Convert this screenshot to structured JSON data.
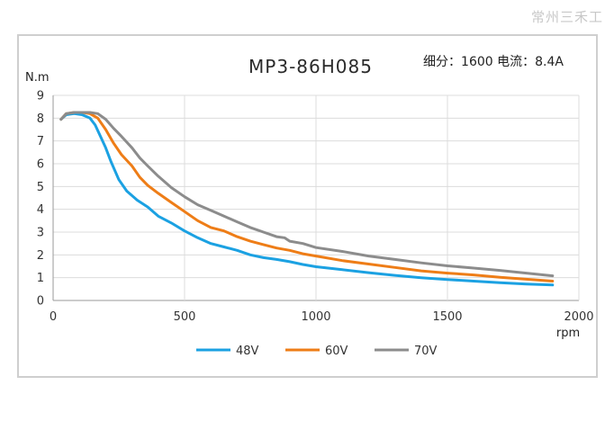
{
  "watermark": "常州三禾工",
  "chart_data": {
    "type": "line",
    "title": "MP3-86H085",
    "subtitle": "细分：1600 电流：8.4A",
    "xlabel": "rpm",
    "ylabel": "N.m",
    "xlim": [
      0,
      2000
    ],
    "ylim": [
      0,
      9
    ],
    "xticks": [
      0,
      500,
      1000,
      1500,
      2000
    ],
    "yticks": [
      0,
      1,
      2,
      3,
      4,
      5,
      6,
      7,
      8,
      9
    ],
    "grid": true,
    "legend_position": "bottom",
    "series": [
      {
        "name": "48V",
        "color": "#1ba1e2",
        "x": [
          30,
          50,
          80,
          110,
          140,
          160,
          180,
          200,
          220,
          250,
          280,
          320,
          360,
          400,
          450,
          500,
          550,
          600,
          650,
          700,
          750,
          800,
          850,
          900,
          950,
          1000,
          1100,
          1200,
          1300,
          1400,
          1500,
          1600,
          1700,
          1800,
          1900
        ],
        "y": [
          7.95,
          8.15,
          8.2,
          8.15,
          8.0,
          7.7,
          7.2,
          6.7,
          6.1,
          5.3,
          4.8,
          4.4,
          4.1,
          3.7,
          3.4,
          3.05,
          2.75,
          2.5,
          2.35,
          2.2,
          2.0,
          1.88,
          1.8,
          1.7,
          1.58,
          1.48,
          1.35,
          1.22,
          1.1,
          1.0,
          0.92,
          0.85,
          0.78,
          0.72,
          0.68
        ]
      },
      {
        "name": "60V",
        "color": "#ee7d17",
        "x": [
          30,
          50,
          80,
          110,
          140,
          170,
          200,
          230,
          260,
          300,
          330,
          360,
          400,
          450,
          500,
          550,
          600,
          650,
          700,
          750,
          800,
          850,
          900,
          950,
          1000,
          1100,
          1200,
          1300,
          1400,
          1500,
          1600,
          1700,
          1800,
          1900
        ],
        "y": [
          7.95,
          8.2,
          8.25,
          8.25,
          8.2,
          8.0,
          7.5,
          6.9,
          6.4,
          5.9,
          5.4,
          5.05,
          4.7,
          4.3,
          3.9,
          3.5,
          3.2,
          3.05,
          2.8,
          2.6,
          2.45,
          2.3,
          2.2,
          2.05,
          1.95,
          1.75,
          1.6,
          1.45,
          1.3,
          1.2,
          1.12,
          1.02,
          0.93,
          0.85
        ]
      },
      {
        "name": "70V",
        "color": "#8c8c8c",
        "x": [
          30,
          50,
          80,
          110,
          140,
          170,
          200,
          230,
          260,
          300,
          330,
          360,
          400,
          450,
          500,
          550,
          600,
          650,
          700,
          750,
          800,
          850,
          880,
          900,
          950,
          1000,
          1100,
          1200,
          1300,
          1400,
          1500,
          1600,
          1700,
          1800,
          1900
        ],
        "y": [
          7.95,
          8.2,
          8.25,
          8.25,
          8.25,
          8.2,
          7.95,
          7.55,
          7.2,
          6.7,
          6.25,
          5.9,
          5.45,
          4.95,
          4.55,
          4.2,
          3.95,
          3.7,
          3.45,
          3.2,
          3.0,
          2.8,
          2.75,
          2.6,
          2.5,
          2.32,
          2.15,
          1.95,
          1.8,
          1.65,
          1.52,
          1.42,
          1.32,
          1.2,
          1.08
        ]
      }
    ]
  }
}
